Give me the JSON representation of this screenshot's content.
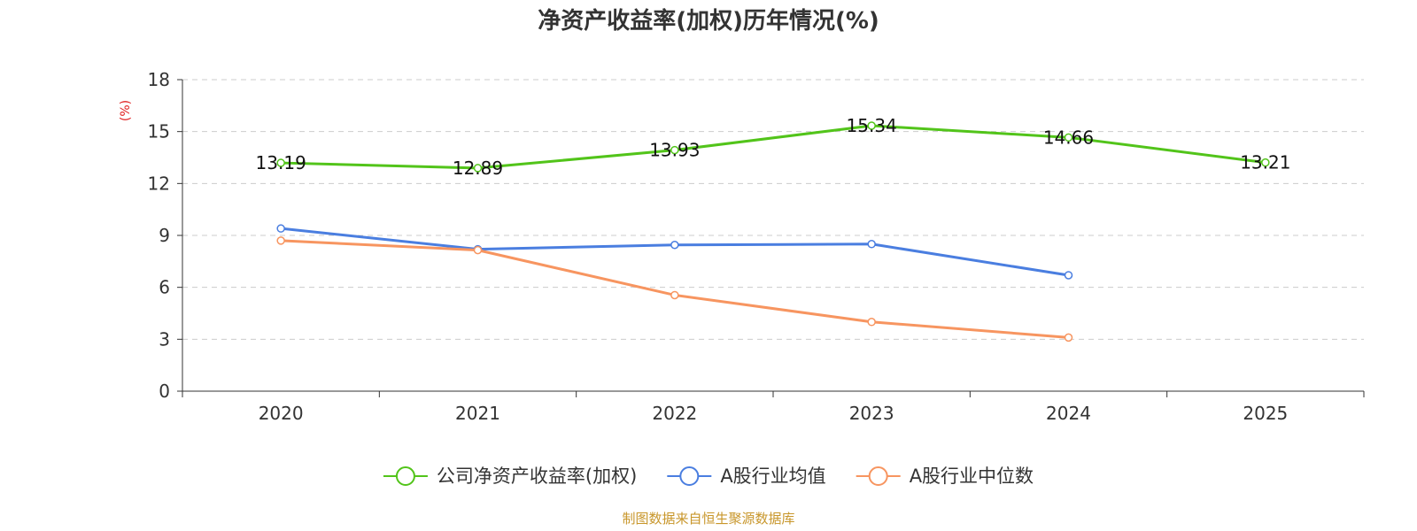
{
  "chart_data": {
    "type": "line",
    "title": "净资产收益率(加权)历年情况(%)",
    "ylabel": "(%)",
    "xlabel": "",
    "ylim": [
      0,
      18
    ],
    "yticks": [
      0,
      3,
      6,
      9,
      12,
      15,
      18
    ],
    "grid": true,
    "categories": [
      "2020",
      "2021",
      "2022",
      "2023",
      "2024",
      "2025"
    ],
    "series": [
      {
        "name": "公司净资产收益率(加权)",
        "color": "#52c41a",
        "values": [
          13.19,
          12.89,
          13.93,
          15.34,
          14.66,
          13.21
        ],
        "labels": [
          "13.19",
          "12.89",
          "13.93",
          "15.34",
          "14.66",
          "13.21"
        ]
      },
      {
        "name": "A股行业均值",
        "color": "#4a7ee0",
        "values": [
          9.4,
          8.2,
          8.45,
          8.5,
          6.7,
          null
        ]
      },
      {
        "name": "A股行业中位数",
        "color": "#f79560",
        "values": [
          8.7,
          8.15,
          5.55,
          4.0,
          3.1,
          null
        ]
      }
    ],
    "legend_position": "bottom-center"
  },
  "source_text": "制图数据来自恒生聚源数据库",
  "colors": {
    "axis": "#333333",
    "grid": "#cccccc",
    "ylabel": "#e02020",
    "source": "#c8962a"
  }
}
